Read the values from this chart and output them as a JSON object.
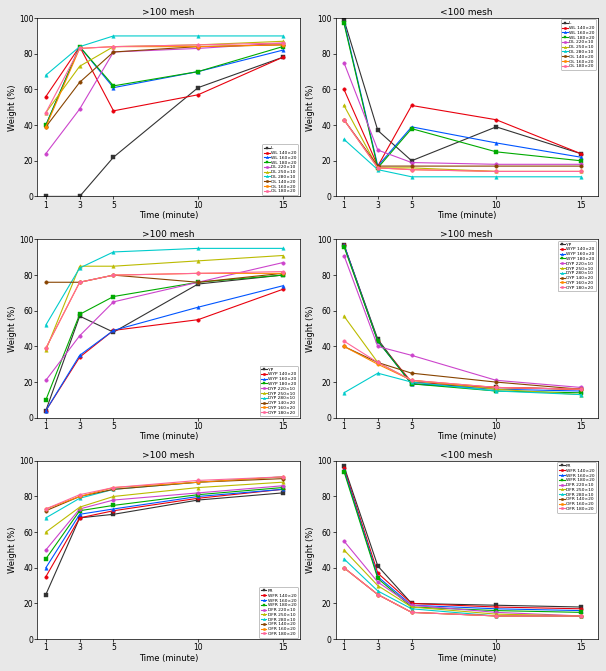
{
  "time_points": [
    1,
    3,
    5,
    10,
    15
  ],
  "plots": [
    {
      "title": ">100 mesh",
      "legend_loc": "lower right",
      "ylim": [
        0,
        100
      ],
      "series": [
        {
          "label": "L",
          "color": "#333333",
          "marker": "s",
          "values": [
            0,
            0,
            22,
            61,
            78
          ]
        },
        {
          "label": "WL 140×20",
          "color": "#e8000d",
          "marker": "o",
          "values": [
            56,
            84,
            48,
            57,
            78
          ]
        },
        {
          "label": "WL 160×20",
          "color": "#0055ff",
          "marker": "^",
          "values": [
            40,
            84,
            61,
            70,
            82
          ]
        },
        {
          "label": "WL 180×20",
          "color": "#00aa00",
          "marker": "s",
          "values": [
            40,
            84,
            62,
            70,
            84
          ]
        },
        {
          "label": "DL 220×10",
          "color": "#cc44cc",
          "marker": "o",
          "values": [
            24,
            49,
            81,
            83,
            86
          ]
        },
        {
          "label": "DL 250×10",
          "color": "#bbbb00",
          "marker": "^",
          "values": [
            47,
            73,
            84,
            85,
            87
          ]
        },
        {
          "label": "DL 280×10",
          "color": "#00cccc",
          "marker": "^",
          "values": [
            68,
            84,
            90,
            90,
            90
          ]
        },
        {
          "label": "OL 140×20",
          "color": "#884400",
          "marker": "o",
          "values": [
            39,
            64,
            81,
            84,
            85
          ]
        },
        {
          "label": "OL 160×20",
          "color": "#ff8800",
          "marker": "o",
          "values": [
            39,
            83,
            84,
            84,
            85
          ]
        },
        {
          "label": "OL 180×20",
          "color": "#ff6699",
          "marker": "o",
          "values": [
            47,
            83,
            84,
            85,
            86
          ]
        }
      ]
    },
    {
      "title": "<100 mesh",
      "legend_loc": "upper right",
      "ylim": [
        0,
        100
      ],
      "series": [
        {
          "label": "L",
          "color": "#333333",
          "marker": "s",
          "values": [
            99,
            37,
            20,
            39,
            24
          ]
        },
        {
          "label": "WL 140×20",
          "color": "#e8000d",
          "marker": "o",
          "values": [
            60,
            17,
            51,
            43,
            24
          ]
        },
        {
          "label": "WL 160×20",
          "color": "#0055ff",
          "marker": "^",
          "values": [
            98,
            17,
            39,
            30,
            22
          ]
        },
        {
          "label": "WL 180×20",
          "color": "#00aa00",
          "marker": "s",
          "values": [
            97,
            16,
            38,
            25,
            20
          ]
        },
        {
          "label": "DL 220×10",
          "color": "#cc44cc",
          "marker": "o",
          "values": [
            75,
            26,
            19,
            18,
            18
          ]
        },
        {
          "label": "DL 250×10",
          "color": "#bbbb00",
          "marker": "^",
          "values": [
            51,
            16,
            16,
            14,
            14
          ]
        },
        {
          "label": "DL 280×10",
          "color": "#00cccc",
          "marker": "^",
          "values": [
            32,
            15,
            11,
            11,
            11
          ]
        },
        {
          "label": "OL 140×20",
          "color": "#884400",
          "marker": "o",
          "values": [
            43,
            17,
            17,
            17,
            17
          ]
        },
        {
          "label": "OL 160×20",
          "color": "#ff8800",
          "marker": "o",
          "values": [
            43,
            16,
            15,
            14,
            14
          ]
        },
        {
          "label": "OL 180×20",
          "color": "#ff6699",
          "marker": "o",
          "values": [
            43,
            16,
            15,
            14,
            14
          ]
        }
      ]
    },
    {
      "title": ">100 mesh",
      "legend_loc": "lower right",
      "ylim": [
        0,
        100
      ],
      "series": [
        {
          "label": "YP",
          "color": "#333333",
          "marker": "s",
          "values": [
            4,
            57,
            48,
            75,
            80
          ]
        },
        {
          "label": "WYP 140×20",
          "color": "#e8000d",
          "marker": "o",
          "values": [
            4,
            34,
            49,
            55,
            72
          ]
        },
        {
          "label": "WYP 160×20",
          "color": "#0055ff",
          "marker": "^",
          "values": [
            4,
            35,
            49,
            62,
            74
          ]
        },
        {
          "label": "WYP 180×20",
          "color": "#00aa00",
          "marker": "s",
          "values": [
            10,
            58,
            68,
            76,
            80
          ]
        },
        {
          "label": "DYP 220×10",
          "color": "#cc44cc",
          "marker": "o",
          "values": [
            21,
            46,
            65,
            76,
            87
          ]
        },
        {
          "label": "DYP 250×10",
          "color": "#bbbb00",
          "marker": "^",
          "values": [
            38,
            85,
            85,
            88,
            91
          ]
        },
        {
          "label": "DYP 280×10",
          "color": "#00cccc",
          "marker": "^",
          "values": [
            52,
            84,
            93,
            95,
            95
          ]
        },
        {
          "label": "OYP 140×20",
          "color": "#884400",
          "marker": "o",
          "values": [
            76,
            76,
            80,
            76,
            81
          ]
        },
        {
          "label": "OYP 160×20",
          "color": "#ff8800",
          "marker": "o",
          "values": [
            39,
            76,
            80,
            81,
            81
          ]
        },
        {
          "label": "OYP 180×20",
          "color": "#ff6699",
          "marker": "o",
          "values": [
            39,
            76,
            80,
            81,
            82
          ]
        }
      ]
    },
    {
      "title": ">100 mesh",
      "legend_loc": "upper right",
      "ylim": [
        0,
        100
      ],
      "series": [
        {
          "label": "YP",
          "color": "#333333",
          "marker": "s",
          "values": [
            97,
            44,
            19,
            17,
            16
          ]
        },
        {
          "label": "WYP 140×20",
          "color": "#e8000d",
          "marker": "o",
          "values": [
            97,
            43,
            20,
            17,
            16
          ]
        },
        {
          "label": "WYP 160×20",
          "color": "#0055ff",
          "marker": "^",
          "values": [
            97,
            43,
            19,
            16,
            15
          ]
        },
        {
          "label": "WYP 180×20",
          "color": "#00aa00",
          "marker": "s",
          "values": [
            96,
            43,
            19,
            15,
            14
          ]
        },
        {
          "label": "DYP 220×10",
          "color": "#cc44cc",
          "marker": "o",
          "values": [
            91,
            40,
            35,
            21,
            17
          ]
        },
        {
          "label": "DYP 250×10",
          "color": "#bbbb00",
          "marker": "^",
          "values": [
            57,
            31,
            21,
            16,
            13
          ]
        },
        {
          "label": "DYP 280×10",
          "color": "#00cccc",
          "marker": "^",
          "values": [
            14,
            25,
            20,
            15,
            13
          ]
        },
        {
          "label": "OYP 140×20",
          "color": "#884400",
          "marker": "o",
          "values": [
            40,
            31,
            25,
            20,
            16
          ]
        },
        {
          "label": "OYP 160×20",
          "color": "#ff8800",
          "marker": "o",
          "values": [
            40,
            30,
            21,
            17,
            16
          ]
        },
        {
          "label": "OYP 180×20",
          "color": "#ff6699",
          "marker": "o",
          "values": [
            43,
            31,
            21,
            17,
            16
          ]
        }
      ]
    },
    {
      "title": ">100 mesh",
      "legend_loc": "lower right",
      "ylim": [
        0,
        100
      ],
      "series": [
        {
          "label": "FR",
          "color": "#333333",
          "marker": "s",
          "values": [
            25,
            68,
            70,
            78,
            82
          ]
        },
        {
          "label": "WFR 140×20",
          "color": "#e8000d",
          "marker": "o",
          "values": [
            35,
            68,
            72,
            79,
            84
          ]
        },
        {
          "label": "WFR 160×20",
          "color": "#0055ff",
          "marker": "^",
          "values": [
            40,
            70,
            73,
            80,
            84
          ]
        },
        {
          "label": "WFR 180×20",
          "color": "#00aa00",
          "marker": "s",
          "values": [
            45,
            72,
            75,
            81,
            85
          ]
        },
        {
          "label": "DFR 220×10",
          "color": "#cc44cc",
          "marker": "o",
          "values": [
            50,
            73,
            78,
            82,
            86
          ]
        },
        {
          "label": "DFR 250×10",
          "color": "#bbbb00",
          "marker": "^",
          "values": [
            60,
            74,
            80,
            85,
            88
          ]
        },
        {
          "label": "DFR 280×10",
          "color": "#00cccc",
          "marker": "^",
          "values": [
            68,
            79,
            84,
            88,
            91
          ]
        },
        {
          "label": "OFR 140×20",
          "color": "#884400",
          "marker": "o",
          "values": [
            72,
            80,
            84,
            88,
            90
          ]
        },
        {
          "label": "OFR 160×20",
          "color": "#ff8800",
          "marker": "o",
          "values": [
            73,
            80,
            85,
            88,
            91
          ]
        },
        {
          "label": "OFR 180×20",
          "color": "#ff6699",
          "marker": "o",
          "values": [
            73,
            81,
            85,
            89,
            91
          ]
        }
      ]
    },
    {
      "title": "<100 mesh",
      "legend_loc": "upper right",
      "ylim": [
        0,
        100
      ],
      "series": [
        {
          "label": "FR",
          "color": "#333333",
          "marker": "s",
          "values": [
            97,
            41,
            20,
            19,
            18
          ]
        },
        {
          "label": "WFR 140×20",
          "color": "#e8000d",
          "marker": "o",
          "values": [
            96,
            37,
            20,
            18,
            17
          ]
        },
        {
          "label": "WFR 160×20",
          "color": "#0055ff",
          "marker": "^",
          "values": [
            95,
            35,
            19,
            17,
            16
          ]
        },
        {
          "label": "WFR 180×20",
          "color": "#00aa00",
          "marker": "s",
          "values": [
            94,
            34,
            18,
            16,
            15
          ]
        },
        {
          "label": "DFR 220×10",
          "color": "#cc44cc",
          "marker": "o",
          "values": [
            55,
            32,
            19,
            15,
            13
          ]
        },
        {
          "label": "DFR 250×10",
          "color": "#bbbb00",
          "marker": "^",
          "values": [
            50,
            30,
            18,
            14,
            13
          ]
        },
        {
          "label": "DFR 280×10",
          "color": "#00cccc",
          "marker": "^",
          "values": [
            45,
            27,
            17,
            13,
            13
          ]
        },
        {
          "label": "OFR 140×20",
          "color": "#884400",
          "marker": "o",
          "values": [
            40,
            25,
            15,
            13,
            13
          ]
        },
        {
          "label": "OFR 160×20",
          "color": "#ff8800",
          "marker": "o",
          "values": [
            40,
            25,
            15,
            13,
            13
          ]
        },
        {
          "label": "OFR 180×20",
          "color": "#ff6699",
          "marker": "o",
          "values": [
            40,
            25,
            15,
            13,
            13
          ]
        }
      ]
    }
  ],
  "xlabel": "Time (minute)",
  "ylabel": "Weight (%)",
  "xticks": [
    1,
    3,
    5,
    10,
    15
  ],
  "yticks": [
    0,
    20,
    40,
    60,
    80,
    100
  ],
  "xlim": [
    0.5,
    16
  ],
  "figsize": [
    6.06,
    6.71
  ],
  "dpi": 100,
  "bg_color": "#e8e8e8"
}
